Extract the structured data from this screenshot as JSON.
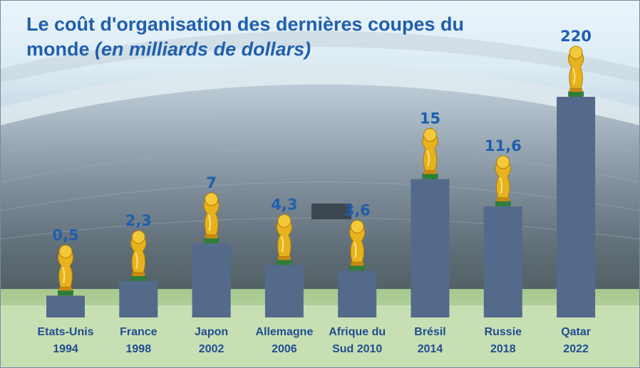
{
  "title": {
    "main": "Le coût d'organisation des dernières coupes du monde",
    "subtitle": "(en milliards de dollars)"
  },
  "colors": {
    "bar": "#546a8b",
    "value_text": "#1f5fae",
    "category_text": "#1f4e8e",
    "pitch": "#c8dfb4"
  },
  "chart_data": {
    "type": "bar",
    "title": "Le coût d'organisation des dernières coupes du monde (en milliards de dollars)",
    "categories": [
      [
        "Etats-Unis",
        "1994"
      ],
      [
        "France",
        "1998"
      ],
      [
        "Japon",
        "2002"
      ],
      [
        "Allemagne",
        "2006"
      ],
      [
        "Afrique du",
        "Sud 2010"
      ],
      [
        "Brésil",
        "2014"
      ],
      [
        "Russie",
        "2018"
      ],
      [
        "Qatar",
        "2022"
      ]
    ],
    "values": [
      0.5,
      2.3,
      7,
      4.3,
      3.6,
      15,
      11.6,
      220
    ],
    "value_labels": [
      "0,5",
      "2,3",
      "7",
      "4,3",
      "3,6",
      "15",
      "11,6",
      "220"
    ],
    "scale": "non-linear (pictorial)",
    "marker_icon": "trophy-icon",
    "grid": false,
    "legend": "none"
  }
}
